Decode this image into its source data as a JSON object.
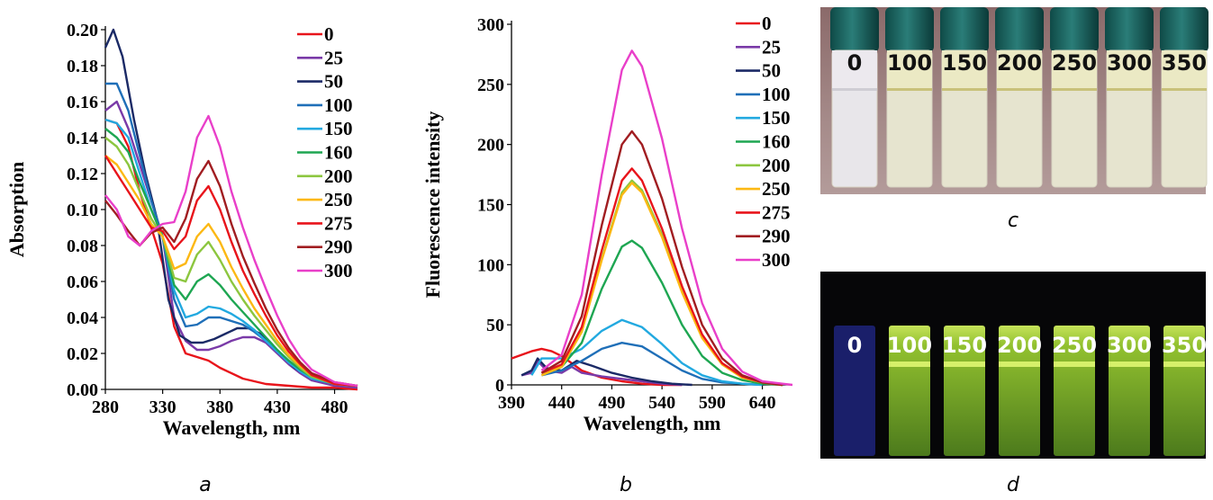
{
  "chart_data": [
    {
      "panel_label": "a",
      "type": "line",
      "xlabel": "Wavelength, nm",
      "ylabel": "Absorption",
      "xlim": [
        280,
        500
      ],
      "ylim": [
        0,
        0.2
      ],
      "xticks": [
        280,
        330,
        380,
        430,
        480
      ],
      "yticks": [
        "0.00",
        "0.02",
        "0.04",
        "0.06",
        "0.08",
        "0.10",
        "0.12",
        "0.14",
        "0.16",
        "0.18",
        "0.20"
      ],
      "legend_position": "right",
      "series": [
        {
          "name": "0",
          "color": "#e8141b",
          "x": [
            280,
            290,
            300,
            310,
            320,
            330,
            340,
            350,
            360,
            370,
            380,
            400,
            420,
            440,
            460,
            480,
            500
          ],
          "y": [
            0.15,
            0.148,
            0.135,
            0.11,
            0.09,
            0.07,
            0.035,
            0.02,
            0.018,
            0.016,
            0.012,
            0.006,
            0.003,
            0.002,
            0.001,
            0.001,
            0.0
          ]
        },
        {
          "name": "25",
          "color": "#7a3aa8",
          "x": [
            280,
            290,
            300,
            310,
            320,
            330,
            340,
            350,
            360,
            370,
            380,
            390,
            400,
            410,
            420,
            430,
            440,
            450,
            460,
            480,
            500
          ],
          "y": [
            0.155,
            0.16,
            0.145,
            0.125,
            0.105,
            0.085,
            0.04,
            0.027,
            0.022,
            0.022,
            0.024,
            0.027,
            0.029,
            0.029,
            0.026,
            0.02,
            0.014,
            0.009,
            0.005,
            0.002,
            0.001
          ]
        },
        {
          "name": "50",
          "color": "#1b2a66",
          "x": [
            280,
            287,
            295,
            305,
            315,
            325,
            335,
            345,
            355,
            365,
            375,
            385,
            395,
            405,
            415,
            425,
            435,
            445,
            460,
            480,
            500
          ],
          "y": [
            0.19,
            0.2,
            0.185,
            0.15,
            0.12,
            0.095,
            0.05,
            0.03,
            0.026,
            0.026,
            0.028,
            0.031,
            0.034,
            0.034,
            0.031,
            0.025,
            0.018,
            0.012,
            0.006,
            0.003,
            0.002
          ]
        },
        {
          "name": "100",
          "color": "#1f6fb8",
          "x": [
            280,
            290,
            300,
            310,
            320,
            330,
            340,
            350,
            360,
            370,
            380,
            390,
            400,
            410,
            420,
            430,
            440,
            450,
            460,
            480,
            500
          ],
          "y": [
            0.17,
            0.17,
            0.155,
            0.13,
            0.105,
            0.085,
            0.05,
            0.035,
            0.036,
            0.04,
            0.04,
            0.038,
            0.036,
            0.032,
            0.027,
            0.021,
            0.015,
            0.01,
            0.006,
            0.003,
            0.002
          ]
        },
        {
          "name": "150",
          "color": "#22a9e0",
          "x": [
            280,
            290,
            300,
            310,
            320,
            330,
            340,
            350,
            360,
            370,
            380,
            390,
            400,
            410,
            420,
            430,
            440,
            450,
            460,
            480,
            500
          ],
          "y": [
            0.15,
            0.148,
            0.14,
            0.12,
            0.1,
            0.085,
            0.055,
            0.04,
            0.042,
            0.046,
            0.045,
            0.042,
            0.038,
            0.033,
            0.027,
            0.021,
            0.015,
            0.01,
            0.006,
            0.003,
            0.002
          ]
        },
        {
          "name": "160",
          "color": "#1ea652",
          "x": [
            280,
            290,
            300,
            310,
            320,
            330,
            340,
            350,
            360,
            370,
            380,
            390,
            400,
            410,
            420,
            430,
            440,
            450,
            460,
            480,
            500
          ],
          "y": [
            0.145,
            0.14,
            0.132,
            0.115,
            0.1,
            0.085,
            0.058,
            0.05,
            0.06,
            0.064,
            0.058,
            0.05,
            0.043,
            0.036,
            0.029,
            0.022,
            0.016,
            0.011,
            0.007,
            0.003,
            0.002
          ]
        },
        {
          "name": "200",
          "color": "#8cc63f",
          "x": [
            280,
            290,
            300,
            310,
            320,
            330,
            340,
            350,
            360,
            370,
            380,
            390,
            400,
            410,
            420,
            430,
            440,
            450,
            460,
            480,
            500
          ],
          "y": [
            0.14,
            0.135,
            0.125,
            0.11,
            0.095,
            0.085,
            0.062,
            0.06,
            0.075,
            0.082,
            0.072,
            0.06,
            0.05,
            0.041,
            0.033,
            0.025,
            0.018,
            0.012,
            0.007,
            0.003,
            0.002
          ]
        },
        {
          "name": "250",
          "color": "#fcb813",
          "x": [
            280,
            290,
            300,
            310,
            320,
            330,
            340,
            350,
            360,
            370,
            380,
            390,
            400,
            410,
            420,
            430,
            440,
            450,
            460,
            480,
            500
          ],
          "y": [
            0.13,
            0.125,
            0.115,
            0.105,
            0.092,
            0.085,
            0.067,
            0.07,
            0.085,
            0.092,
            0.082,
            0.068,
            0.056,
            0.045,
            0.036,
            0.027,
            0.019,
            0.013,
            0.008,
            0.003,
            0.002
          ]
        },
        {
          "name": "275",
          "color": "#e8141b",
          "x": [
            280,
            290,
            300,
            310,
            320,
            330,
            340,
            350,
            360,
            370,
            380,
            390,
            400,
            410,
            420,
            430,
            440,
            450,
            460,
            480,
            500
          ],
          "y": [
            0.13,
            0.12,
            0.11,
            0.1,
            0.09,
            0.088,
            0.078,
            0.085,
            0.105,
            0.113,
            0.1,
            0.082,
            0.066,
            0.053,
            0.041,
            0.03,
            0.021,
            0.014,
            0.008,
            0.003,
            0.002
          ]
        },
        {
          "name": "290",
          "color": "#a11d21",
          "x": [
            280,
            290,
            300,
            310,
            320,
            330,
            340,
            350,
            360,
            370,
            380,
            390,
            400,
            410,
            420,
            430,
            440,
            450,
            460,
            480,
            500
          ],
          "y": [
            0.105,
            0.097,
            0.088,
            0.08,
            0.087,
            0.09,
            0.082,
            0.095,
            0.117,
            0.127,
            0.113,
            0.092,
            0.074,
            0.059,
            0.045,
            0.033,
            0.023,
            0.015,
            0.009,
            0.004,
            0.002
          ]
        },
        {
          "name": "300",
          "color": "#e93fc9",
          "x": [
            280,
            290,
            300,
            310,
            320,
            330,
            340,
            350,
            360,
            370,
            380,
            390,
            400,
            410,
            420,
            430,
            440,
            450,
            460,
            480,
            500
          ],
          "y": [
            0.108,
            0.1,
            0.085,
            0.08,
            0.088,
            0.092,
            0.093,
            0.11,
            0.14,
            0.152,
            0.135,
            0.11,
            0.09,
            0.072,
            0.056,
            0.041,
            0.028,
            0.018,
            0.011,
            0.004,
            0.002
          ]
        }
      ]
    },
    {
      "panel_label": "b",
      "type": "line",
      "xlabel": "Wavelength, nm",
      "ylabel": "Fluorescence intensity",
      "xlim": [
        390,
        670
      ],
      "ylim": [
        0,
        300
      ],
      "xticks": [
        390,
        440,
        490,
        540,
        590,
        640
      ],
      "yticks": [
        "0",
        "50",
        "100",
        "150",
        "200",
        "250",
        "300"
      ],
      "legend_position": "right",
      "series": [
        {
          "name": "0",
          "color": "#e8141b",
          "x": [
            390,
            400,
            410,
            420,
            430,
            440,
            450,
            460,
            480,
            500,
            520,
            540,
            560
          ],
          "y": [
            22,
            25,
            28,
            30,
            28,
            24,
            18,
            12,
            6,
            3,
            1,
            0,
            0
          ]
        },
        {
          "name": "25",
          "color": "#7a3aa8",
          "x": [
            400,
            410,
            416,
            425,
            440,
            450,
            460,
            480,
            500,
            520,
            540,
            560
          ],
          "y": [
            8,
            10,
            20,
            12,
            10,
            15,
            10,
            7,
            5,
            3,
            1,
            0
          ]
        },
        {
          "name": "50",
          "color": "#1b2a66",
          "x": [
            400,
            410,
            416,
            425,
            440,
            455,
            470,
            490,
            510,
            530,
            550,
            570
          ],
          "y": [
            8,
            12,
            22,
            14,
            12,
            20,
            16,
            10,
            6,
            3,
            1,
            0
          ]
        },
        {
          "name": "100",
          "color": "#1f6fb8",
          "x": [
            420,
            440,
            460,
            480,
            500,
            520,
            540,
            560,
            580,
            600,
            620,
            640
          ],
          "y": [
            8,
            12,
            20,
            30,
            35,
            32,
            22,
            12,
            5,
            2,
            1,
            0
          ]
        },
        {
          "name": "150",
          "color": "#22a9e0",
          "x": [
            410,
            420,
            440,
            460,
            480,
            500,
            520,
            540,
            560,
            580,
            600,
            620,
            640
          ],
          "y": [
            8,
            22,
            22,
            30,
            45,
            54,
            48,
            34,
            18,
            8,
            3,
            1,
            0
          ]
        },
        {
          "name": "160",
          "color": "#1ea652",
          "x": [
            420,
            440,
            460,
            480,
            500,
            510,
            520,
            540,
            560,
            580,
            600,
            620,
            640,
            660
          ],
          "y": [
            10,
            15,
            35,
            80,
            115,
            120,
            114,
            85,
            50,
            24,
            10,
            4,
            1,
            0
          ]
        },
        {
          "name": "200",
          "color": "#8cc63f",
          "x": [
            420,
            440,
            460,
            480,
            500,
            510,
            520,
            540,
            560,
            580,
            600,
            620,
            640,
            660
          ],
          "y": [
            8,
            15,
            45,
            105,
            160,
            170,
            162,
            125,
            78,
            40,
            17,
            6,
            2,
            0
          ]
        },
        {
          "name": "250",
          "color": "#fcb813",
          "x": [
            420,
            440,
            460,
            480,
            500,
            510,
            520,
            540,
            560,
            580,
            600,
            620,
            640,
            660
          ],
          "y": [
            8,
            15,
            44,
            104,
            158,
            168,
            160,
            123,
            77,
            39,
            17,
            6,
            2,
            0
          ]
        },
        {
          "name": "275",
          "color": "#e8141b",
          "x": [
            420,
            440,
            460,
            480,
            500,
            510,
            520,
            540,
            560,
            580,
            600,
            620,
            640,
            660
          ],
          "y": [
            10,
            17,
            48,
            112,
            170,
            180,
            170,
            130,
            82,
            42,
            18,
            7,
            2,
            0
          ]
        },
        {
          "name": "290",
          "color": "#a11d21",
          "x": [
            420,
            440,
            460,
            480,
            500,
            510,
            520,
            540,
            560,
            580,
            600,
            620,
            640,
            660
          ],
          "y": [
            10,
            20,
            57,
            133,
            200,
            211,
            200,
            155,
            98,
            50,
            22,
            8,
            2,
            0
          ]
        },
        {
          "name": "300",
          "color": "#e93fc9",
          "x": [
            420,
            440,
            460,
            480,
            500,
            510,
            520,
            540,
            560,
            580,
            600,
            620,
            640,
            660,
            670
          ],
          "y": [
            12,
            25,
            75,
            175,
            262,
            278,
            265,
            205,
            130,
            68,
            30,
            11,
            3,
            1,
            0
          ]
        }
      ]
    }
  ],
  "photos": {
    "c": {
      "label": "c",
      "vial_labels": [
        "0",
        "100",
        "150",
        "200",
        "250",
        "300",
        "350"
      ]
    },
    "d": {
      "label": "d",
      "vial_labels": [
        "0",
        "100",
        "150",
        "200",
        "250",
        "300",
        "350"
      ]
    }
  }
}
